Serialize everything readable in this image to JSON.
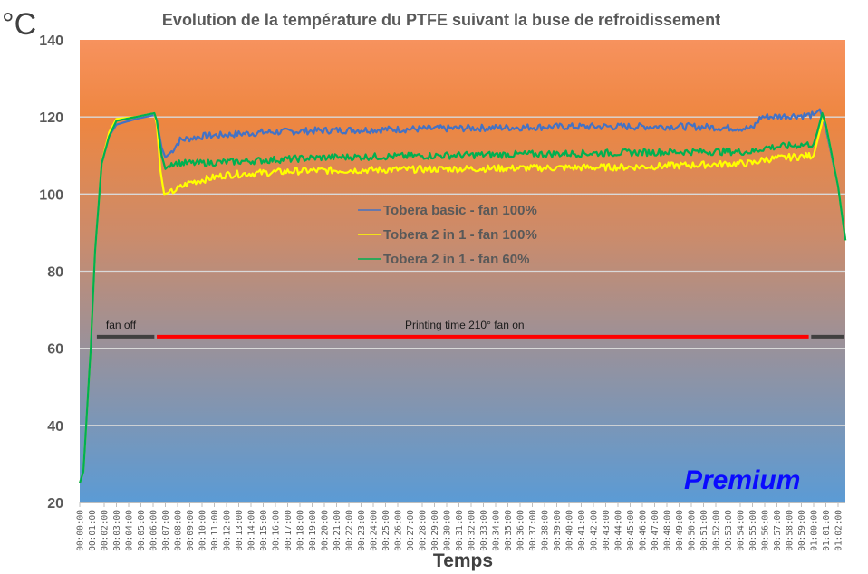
{
  "chart_data": {
    "type": "line",
    "title": "Evolution de la température  du PTFE suivant la buse de refroidissement",
    "ylabel": "°C",
    "xlabel": "Temps",
    "ylim": [
      20,
      140
    ],
    "yticks": [
      20,
      40,
      60,
      80,
      100,
      120,
      140
    ],
    "grid": true,
    "legend_position": "center",
    "x_unit": "minutes",
    "xlim": [
      0,
      62.6
    ],
    "xtick_labels": [
      "00:00:00",
      "00:01:00",
      "00:02:00",
      "00:03:00",
      "00:04:00",
      "00:05:00",
      "00:06:00",
      "00:07:00",
      "00:08:00",
      "00:09:00",
      "00:10:00",
      "00:11:00",
      "00:12:00",
      "00:13:00",
      "00:14:00",
      "00:15:00",
      "00:16:00",
      "00:17:00",
      "00:18:00",
      "00:19:00",
      "00:20:00",
      "00:21:00",
      "00:22:00",
      "00:23:00",
      "00:24:00",
      "00:25:00",
      "00:26:00",
      "00:27:00",
      "00:28:00",
      "00:29:00",
      "00:30:00",
      "00:31:00",
      "00:32:00",
      "00:33:00",
      "00:34:00",
      "00:35:00",
      "00:36:00",
      "00:37:00",
      "00:38:00",
      "00:39:00",
      "00:40:00",
      "00:41:00",
      "00:42:00",
      "00:43:00",
      "00:44:00",
      "00:45:00",
      "00:46:00",
      "00:47:00",
      "00:48:00",
      "00:49:00",
      "00:50:00",
      "00:51:00",
      "00:52:00",
      "00:53:00",
      "00:54:00",
      "00:55:00",
      "00:56:00",
      "00:57:00",
      "00:58:00",
      "00:59:00",
      "01:00:00",
      "01:01:00",
      "01:02:00"
    ],
    "series": [
      {
        "name": "Tobera basic - fan 100%",
        "color": "#4472C4",
        "x": [
          0,
          0.3,
          0.9,
          1.25,
          1.8,
          2.4,
          3.0,
          4.6,
          6.1,
          6.3,
          6.7,
          7.0,
          7.5,
          8.2,
          10,
          15,
          20,
          30,
          40,
          50,
          55,
          55.7,
          60,
          60.5,
          61,
          62,
          62.6
        ],
        "y": [
          25,
          28,
          60,
          85,
          108,
          115,
          118,
          119.5,
          120.5,
          119,
          112,
          109.5,
          111,
          114,
          115,
          116,
          116.5,
          117,
          117.5,
          117.5,
          117,
          120,
          120.5,
          122,
          117,
          102,
          88
        ]
      },
      {
        "name": "Tobera 2 in 1 - fan 100%",
        "color": "#FFFF00",
        "x": [
          0,
          0.3,
          0.9,
          1.25,
          1.8,
          2.4,
          3.0,
          4.6,
          6.1,
          6.3,
          6.6,
          6.9,
          7.5,
          9,
          12,
          18,
          30,
          45,
          50,
          55,
          56,
          60,
          60.4,
          60.8,
          61,
          62,
          62.6
        ],
        "y": [
          25,
          28,
          60,
          85,
          108,
          116,
          119.5,
          120,
          121,
          118,
          106,
          100,
          100.5,
          103,
          105,
          106,
          106.5,
          107,
          107.5,
          108,
          109,
          110,
          115,
          120,
          118,
          102,
          88
        ]
      },
      {
        "name": "Tobera 2 in 1 - fan 60%",
        "color": "#00B050",
        "x": [
          0,
          0.3,
          0.9,
          1.25,
          1.8,
          2.4,
          3.0,
          4.6,
          6.1,
          6.3,
          6.7,
          7.0,
          7.5,
          10,
          20,
          30,
          40,
          50,
          55,
          56,
          60,
          60.3,
          60.7,
          61,
          62,
          62.6
        ],
        "y": [
          25,
          28,
          60,
          85,
          108,
          115,
          119,
          120,
          121,
          119,
          110,
          106.5,
          108,
          108,
          109.5,
          110,
          110.5,
          111,
          111,
          112,
          113,
          116,
          121,
          118,
          102,
          88
        ]
      }
    ],
    "annotations": [
      {
        "text": "fan off",
        "color": "#404040",
        "x_start": 1.4,
        "x_end": 6.1,
        "y": 63
      },
      {
        "text": "Printing time  210° fan on",
        "color": "#FF0000",
        "x_start": 6.3,
        "x_end": 59.6,
        "y": 63
      },
      {
        "text": "",
        "color": "#404040",
        "x_start": 59.8,
        "x_end": 62.5,
        "y": 63
      }
    ],
    "watermark": "Premium"
  }
}
